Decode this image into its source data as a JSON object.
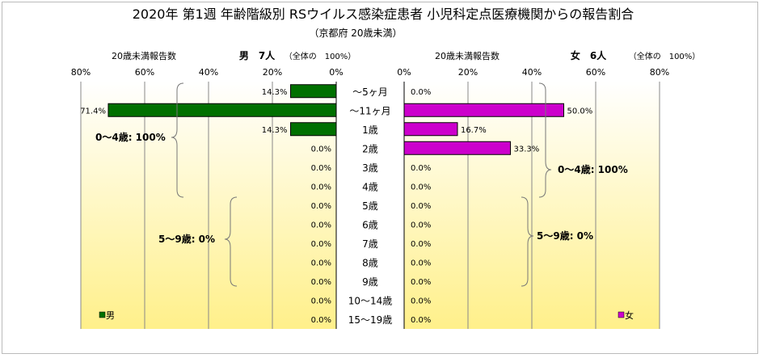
{
  "chart_data": {
    "type": "bar",
    "title": "2020年 第1週 年齢階級別 RSウイルス感染症患者 小児科定点医療機関からの報告割合",
    "subtitle": "（京都府 20歳未満）",
    "categories": [
      "～5ヶ月",
      "～11ヶ月",
      "1歳",
      "2歳",
      "3歳",
      "4歳",
      "5歳",
      "6歳",
      "7歳",
      "8歳",
      "9歳",
      "10～14歳",
      "15～19歳"
    ],
    "male": {
      "axis_caption": "20歳未満報告数",
      "header": "男　7人",
      "header_note": "（全体の　100%）",
      "legend": "男",
      "color": "#007000",
      "values": [
        14.3,
        71.4,
        14.3,
        0,
        0,
        0,
        0,
        0,
        0,
        0,
        0,
        0,
        0
      ],
      "labels": [
        "14.3%",
        "71.4%",
        "14.3%",
        "0.0%",
        "0.0%",
        "0.0%",
        "0.0%",
        "0.0%",
        "0.0%",
        "0.0%",
        "0.0%",
        "0.0%",
        "0.0%"
      ],
      "ticks": [
        "80%",
        "60%",
        "40%",
        "20%",
        "0%"
      ],
      "group_0_4": "0～4歳: 100%",
      "group_5_9": "5～9歳: 0%"
    },
    "female": {
      "axis_caption": "20歳未満報告数",
      "header": "女　6人",
      "header_note": "（全体の　100%）",
      "legend": "女",
      "color": "#cc00cc",
      "values": [
        0,
        50.0,
        16.7,
        33.3,
        0,
        0,
        0,
        0,
        0,
        0,
        0,
        0,
        0
      ],
      "labels": [
        "0.0%",
        "50.0%",
        "16.7%",
        "33.3%",
        "0.0%",
        "0.0%",
        "0.0%",
        "0.0%",
        "0.0%",
        "0.0%",
        "0.0%",
        "0.0%",
        "0.0%"
      ],
      "ticks": [
        "0%",
        "20%",
        "40%",
        "60%",
        "80%"
      ],
      "group_0_4": "0～4歳: 100%",
      "group_5_9": "5～9歳: 0%"
    },
    "xlim": [
      0,
      80
    ]
  }
}
